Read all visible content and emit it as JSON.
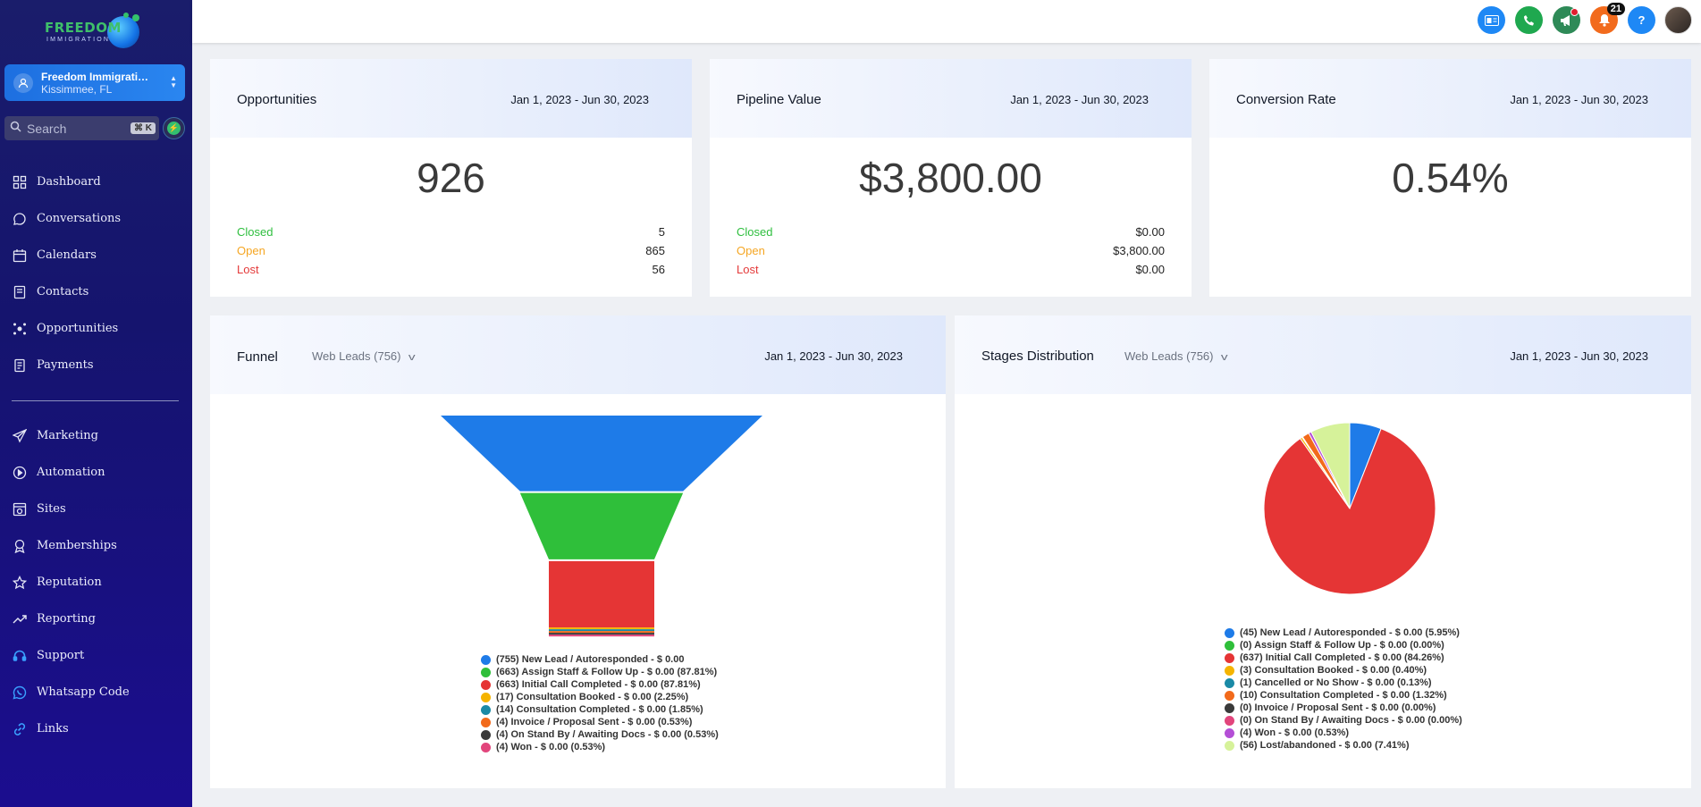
{
  "brand": {
    "name": "FREEDOM",
    "tagline": "IMMIGRATION"
  },
  "account": {
    "name": "Freedom Immigratio...",
    "location": "Kissimmee, FL"
  },
  "search": {
    "placeholder": "Search",
    "shortcut": "⌘ K"
  },
  "nav_main": [
    {
      "label": "Dashboard",
      "icon": "dashboard-icon"
    },
    {
      "label": "Conversations",
      "icon": "chat-icon"
    },
    {
      "label": "Calendars",
      "icon": "calendar-icon"
    },
    {
      "label": "Contacts",
      "icon": "contacts-icon"
    },
    {
      "label": "Opportunities",
      "icon": "opportunities-icon"
    },
    {
      "label": "Payments",
      "icon": "payments-icon"
    }
  ],
  "nav_secondary": [
    {
      "label": "Marketing",
      "icon": "send-icon"
    },
    {
      "label": "Automation",
      "icon": "automation-icon"
    },
    {
      "label": "Sites",
      "icon": "sites-icon"
    },
    {
      "label": "Memberships",
      "icon": "badge-icon"
    },
    {
      "label": "Reputation",
      "icon": "star-icon"
    },
    {
      "label": "Reporting",
      "icon": "trend-icon"
    },
    {
      "label": "Support",
      "icon": "headset-icon"
    },
    {
      "label": "Whatsapp Code",
      "icon": "whatsapp-icon"
    },
    {
      "label": "Links",
      "icon": "link-icon"
    }
  ],
  "topbar": {
    "notifications_count": "21",
    "help_label": "?",
    "colors": {
      "contact": "#1e88f5",
      "phone": "#1fa84f",
      "announce": "#2e8a57",
      "bell": "#f26b1d",
      "help": "#1e88f5"
    }
  },
  "opportunities": {
    "title": "Opportunities",
    "date": "Jan 1, 2023 - Jun 30, 2023",
    "value": "926",
    "rows": [
      {
        "label": "Closed",
        "value": "5"
      },
      {
        "label": "Open",
        "value": "865"
      },
      {
        "label": "Lost",
        "value": "56"
      }
    ]
  },
  "pipeline": {
    "title": "Pipeline Value",
    "date": "Jan 1, 2023 - Jun 30, 2023",
    "value": "$3,800.00",
    "rows": [
      {
        "label": "Closed",
        "value": "$0.00"
      },
      {
        "label": "Open",
        "value": "$3,800.00"
      },
      {
        "label": "Lost",
        "value": "$0.00"
      }
    ]
  },
  "conversion": {
    "title": "Conversion Rate",
    "date": "Jan 1, 2023 - Jun 30, 2023",
    "value": "0.54%"
  },
  "funnel": {
    "title": "Funnel",
    "filter": "Web Leads (756)",
    "date": "Jan 1, 2023 - Jun 30, 2023",
    "legend": [
      {
        "text": "(755) New Lead / Autoresponded - $ 0.00",
        "color": "#1e7be8"
      },
      {
        "text": "(663) Assign Staff & Follow Up - $ 0.00 (87.81%)",
        "color": "#2fbf3a"
      },
      {
        "text": "(663) Initial Call Completed - $ 0.00 (87.81%)",
        "color": "#e53535"
      },
      {
        "text": "(17) Consultation Booked - $ 0.00 (2.25%)",
        "color": "#f5b400"
      },
      {
        "text": "(14) Consultation Completed - $ 0.00 (1.85%)",
        "color": "#1a8aa6"
      },
      {
        "text": "(4) Invoice / Proposal Sent - $ 0.00 (0.53%)",
        "color": "#f26a1b"
      },
      {
        "text": "(4) On Stand By / Awaiting Docs - $ 0.00 (0.53%)",
        "color": "#3a3a3a"
      },
      {
        "text": "(4) Won - $ 0.00 (0.53%)",
        "color": "#e2457c"
      }
    ]
  },
  "stages": {
    "title": "Stages Distribution",
    "filter": "Web Leads (756)",
    "date": "Jan 1, 2023 - Jun 30, 2023",
    "legend": [
      {
        "text": "(45) New Lead / Autoresponded - $ 0.00 (5.95%)",
        "color": "#1e7be8"
      },
      {
        "text": "(0) Assign Staff & Follow Up - $ 0.00 (0.00%)",
        "color": "#2fbf3a"
      },
      {
        "text": "(637) Initial Call Completed - $ 0.00 (84.26%)",
        "color": "#e53535"
      },
      {
        "text": "(3) Consultation Booked - $ 0.00 (0.40%)",
        "color": "#f5b400"
      },
      {
        "text": "(1) Cancelled or No Show - $ 0.00 (0.13%)",
        "color": "#1a8aa6"
      },
      {
        "text": "(10) Consultation Completed - $ 0.00 (1.32%)",
        "color": "#f26a1b"
      },
      {
        "text": "(0) Invoice / Proposal Sent - $ 0.00 (0.00%)",
        "color": "#3a3a3a"
      },
      {
        "text": "(0) On Stand By / Awaiting Docs - $ 0.00 (0.00%)",
        "color": "#e2457c"
      },
      {
        "text": "(4) Won - $ 0.00 (0.53%)",
        "color": "#b44fd6"
      },
      {
        "text": "(56) Lost/abandoned - $ 0.00 (7.41%)",
        "color": "#d6f29a"
      }
    ]
  },
  "chart_data": [
    {
      "type": "funnel",
      "categories": [
        "New Lead / Autoresponded",
        "Assign Staff & Follow Up",
        "Initial Call Completed",
        "Consultation Booked",
        "Consultation Completed",
        "Invoice / Proposal Sent",
        "On Stand By / Awaiting Docs",
        "Won"
      ],
      "values": [
        755,
        663,
        663,
        17,
        14,
        4,
        4,
        4
      ],
      "colors": [
        "#1e7be8",
        "#2fbf3a",
        "#e53535",
        "#f5b400",
        "#1a8aa6",
        "#f26a1b",
        "#3a3a3a",
        "#e2457c"
      ]
    },
    {
      "type": "pie",
      "categories": [
        "New Lead / Autoresponded",
        "Assign Staff & Follow Up",
        "Initial Call Completed",
        "Consultation Booked",
        "Cancelled or No Show",
        "Consultation Completed",
        "Invoice / Proposal Sent",
        "On Stand By / Awaiting Docs",
        "Won",
        "Lost/abandoned"
      ],
      "values": [
        45,
        0,
        637,
        3,
        1,
        10,
        0,
        0,
        4,
        56
      ],
      "colors": [
        "#1e7be8",
        "#2fbf3a",
        "#e53535",
        "#f5b400",
        "#1a8aa6",
        "#f26a1b",
        "#3a3a3a",
        "#e2457c",
        "#b44fd6",
        "#d6f29a"
      ]
    }
  ]
}
